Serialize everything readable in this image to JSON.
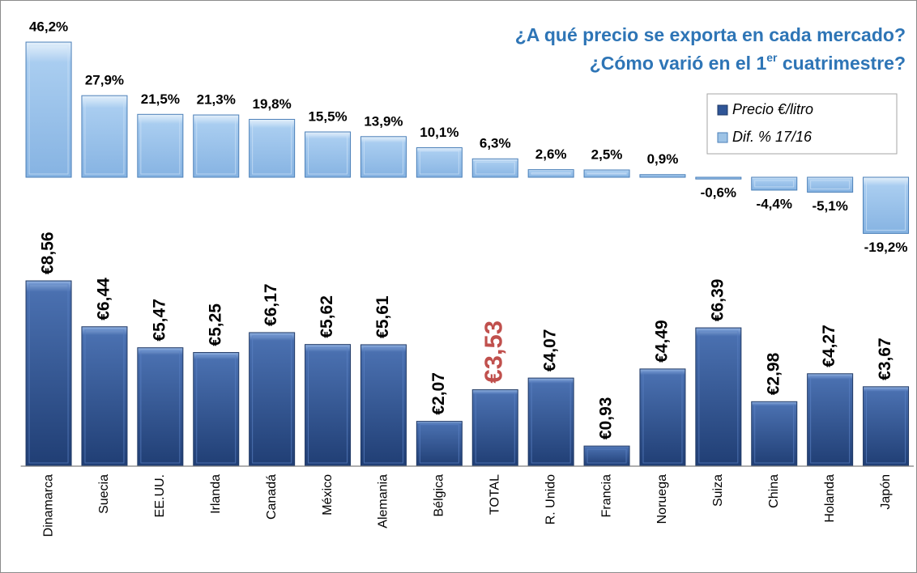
{
  "chart_data": {
    "type": "bar",
    "title": "¿A qué precio se exporta en cada mercado?",
    "subtitle_parts": [
      "¿Cómo varió en el 1",
      "er",
      " cuatrimestre?"
    ],
    "categories": [
      "Dinamarca",
      "Suecia",
      "EE.UU.",
      "Irlanda",
      "Canadá",
      "México",
      "Alemania",
      "Bélgica",
      "TOTAL",
      "R. Unido",
      "Francia",
      "Noruega",
      "Suiza",
      "China",
      "Holanda",
      "Japón"
    ],
    "series": [
      {
        "name": "Precio €/litro",
        "color": "#2f5597",
        "axis": "y",
        "values": [
          8.56,
          6.44,
          5.47,
          5.25,
          6.17,
          5.62,
          5.61,
          2.07,
          3.53,
          4.07,
          0.93,
          4.49,
          6.39,
          2.98,
          4.27,
          3.67
        ],
        "value_labels": [
          "€8,56",
          "€6,44",
          "€5,47",
          "€5,25",
          "€6,17",
          "€5,62",
          "€5,61",
          "€2,07",
          "€3,53",
          "€4,07",
          "€0,93",
          "€4,49",
          "€6,39",
          "€2,98",
          "€4,27",
          "€3,67"
        ]
      },
      {
        "name": "Dif. % 17/16",
        "color": "#9dc3e6",
        "axis": "y2",
        "values": [
          46.2,
          27.9,
          21.5,
          21.3,
          19.8,
          15.5,
          13.9,
          10.1,
          6.3,
          2.6,
          2.5,
          0.9,
          -0.6,
          -4.4,
          -5.1,
          -19.2
        ],
        "value_labels": [
          "46,2%",
          "27,9%",
          "21,5%",
          "21,3%",
          "19,8%",
          "15,5%",
          "13,9%",
          "10,1%",
          "6,3%",
          "2,6%",
          "2,5%",
          "0,9%",
          "-0,6%",
          "-4,4%",
          "-5,1%",
          "-19,2%"
        ]
      }
    ],
    "ylim": [
      0,
      10
    ],
    "y2lim": [
      -20,
      50
    ],
    "highlight": {
      "category": "TOTAL",
      "color": "#c0504d"
    },
    "legend": "upper right"
  }
}
